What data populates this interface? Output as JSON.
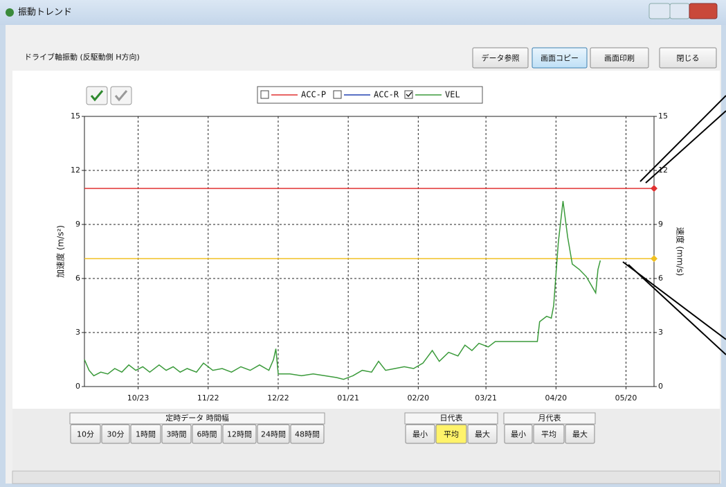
{
  "window": {
    "title": "振動トレンド"
  },
  "toolbar": {
    "label": "ドライブ軸振動 (反駆動側 H方向)",
    "buttons": [
      {
        "label": "データ参照",
        "active": false
      },
      {
        "label": "画面コピー",
        "active": true
      },
      {
        "label": "画面印刷",
        "active": false
      },
      {
        "label": "閉じる",
        "active": false
      }
    ]
  },
  "chart_data": {
    "type": "line",
    "ylabel": "加速度 (m/s²)",
    "y2label": "速度 (mm/s)",
    "ylim": [
      0,
      15
    ],
    "yticks": [
      0,
      3,
      6,
      9,
      12,
      15
    ],
    "y2lim": [
      0,
      15
    ],
    "y2ticks": [
      0,
      3,
      6,
      9,
      12,
      15
    ],
    "xlim": [
      "09/30",
      "06/01"
    ],
    "xticks": [
      "10/23",
      "11/22",
      "12/22",
      "01/21",
      "02/20",
      "03/21",
      "04/20",
      "05/20"
    ],
    "grid": true,
    "legend_items": [
      {
        "name": "ACC-P",
        "color": "#e03030",
        "checked": false
      },
      {
        "name": "ACC-R",
        "color": "#2040b0",
        "checked": false
      }
    ],
    "x": [
      "09/30",
      "10/02",
      "10/04",
      "10/07",
      "10/10",
      "10/13",
      "10/16",
      "10/19",
      "10/22",
      "10/25",
      "10/28",
      "11/01",
      "11/04",
      "11/07",
      "11/10",
      "11/13",
      "11/17",
      "11/20",
      "11/24",
      "11/28",
      "12/02",
      "12/06",
      "12/10",
      "12/14",
      "12/18",
      "12/20",
      "12/21",
      "12/22",
      "12/27",
      "01/01",
      "01/06",
      "01/11",
      "01/16",
      "01/19",
      "01/23",
      "01/27",
      "01/31",
      "02/03",
      "02/06",
      "02/10",
      "02/14",
      "02/18",
      "02/22",
      "02/26",
      "03/01",
      "03/05",
      "03/09",
      "03/12",
      "03/15",
      "03/18",
      "03/22",
      "03/25",
      "03/29",
      "04/03",
      "04/08",
      "04/12",
      "04/13",
      "04/16",
      "04/18",
      "04/19",
      "04/21",
      "04/23",
      "04/25",
      "04/27",
      "04/30",
      "05/03",
      "05/07",
      "05/08",
      "05/09"
    ],
    "series": [
      {
        "name": "VEL",
        "color": "#3a9a3a",
        "checked": true,
        "axis": "y2",
        "values": [
          1.5,
          0.9,
          0.6,
          0.8,
          0.7,
          1.0,
          0.8,
          1.2,
          0.9,
          1.1,
          0.8,
          1.2,
          0.9,
          1.1,
          0.8,
          1.0,
          0.8,
          1.3,
          0.9,
          1.0,
          0.8,
          1.1,
          0.9,
          1.2,
          0.9,
          1.5,
          2.1,
          0.7,
          0.7,
          0.6,
          0.7,
          0.6,
          0.5,
          0.4,
          0.6,
          0.9,
          0.8,
          1.4,
          0.9,
          1.0,
          1.1,
          1.0,
          1.3,
          2.0,
          1.4,
          1.9,
          1.7,
          2.3,
          2.0,
          2.4,
          2.2,
          2.5,
          2.5,
          2.5,
          2.5,
          2.5,
          3.6,
          3.9,
          3.8,
          4.5,
          8.0,
          10.3,
          8.3,
          6.8,
          6.5,
          6.1,
          5.2,
          6.5,
          7.0
        ]
      }
    ],
    "thresholds": [
      {
        "value": 11,
        "color": "#e03030"
      },
      {
        "value": 7.1,
        "color": "#f0c020"
      }
    ]
  },
  "controls": {
    "interval": {
      "title": "定時データ 時間幅",
      "buttons": [
        "10分",
        "30分",
        "1時間",
        "3時間",
        "6時間",
        "12時間",
        "24時間",
        "48時間"
      ]
    },
    "daily": {
      "title": "日代表",
      "buttons": [
        {
          "label": "最小",
          "selected": false
        },
        {
          "label": "平均",
          "selected": true
        },
        {
          "label": "最大",
          "selected": false
        }
      ]
    },
    "monthly": {
      "title": "月代表",
      "buttons": [
        {
          "label": "最小",
          "selected": false
        },
        {
          "label": "平均",
          "selected": false
        },
        {
          "label": "最大",
          "selected": false
        }
      ]
    }
  }
}
